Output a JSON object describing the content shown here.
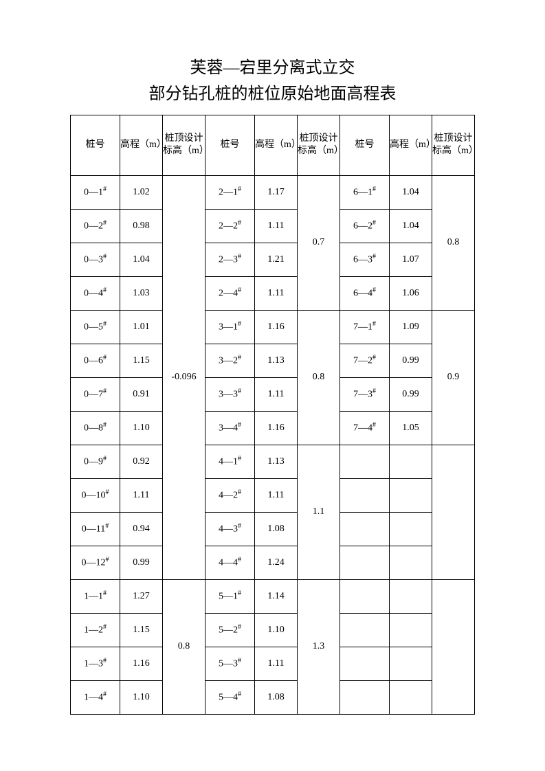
{
  "title_line1": "芙蓉—宕里分离式立交",
  "title_line2": "部分钻孔桩的桩位原始地面高程表",
  "headers": {
    "pile": "桩号",
    "elev": "高程（m）",
    "design": "桩顶设计标高（m）"
  },
  "col1": {
    "design1": "-0.096",
    "design2": "0.8",
    "rows": [
      {
        "p": "0—1",
        "e": "1.02"
      },
      {
        "p": "0—2",
        "e": "0.98"
      },
      {
        "p": "0—3",
        "e": "1.04"
      },
      {
        "p": "0—4",
        "e": "1.03"
      },
      {
        "p": "0—5",
        "e": "1.01"
      },
      {
        "p": "0—6",
        "e": "1.15"
      },
      {
        "p": "0—7",
        "e": "0.91"
      },
      {
        "p": "0—8",
        "e": "1.10"
      },
      {
        "p": "0—9",
        "e": "0.92"
      },
      {
        "p": "0—10",
        "e": "1.11"
      },
      {
        "p": "0—11",
        "e": "0.94"
      },
      {
        "p": "0—12",
        "e": "0.99"
      },
      {
        "p": "1—1",
        "e": "1.27"
      },
      {
        "p": "1—2",
        "e": "1.15"
      },
      {
        "p": "1—3",
        "e": "1.16"
      },
      {
        "p": "1—4",
        "e": "1.10"
      }
    ]
  },
  "col2": {
    "design": [
      "0.7",
      "0.8",
      "1.1",
      "1.3"
    ],
    "rows": [
      {
        "p": "2—1",
        "e": "1.17"
      },
      {
        "p": "2—2",
        "e": "1.11"
      },
      {
        "p": "2—3",
        "e": "1.21"
      },
      {
        "p": "2—4",
        "e": "1.11"
      },
      {
        "p": "3—1",
        "e": "1.16"
      },
      {
        "p": "3—2",
        "e": "1.13"
      },
      {
        "p": "3—3",
        "e": "1.11"
      },
      {
        "p": "3—4",
        "e": "1.16"
      },
      {
        "p": "4—1",
        "e": "1.13"
      },
      {
        "p": "4—2",
        "e": "1.11"
      },
      {
        "p": "4—3",
        "e": "1.08"
      },
      {
        "p": "4—4",
        "e": "1.24"
      },
      {
        "p": "5—1",
        "e": "1.14"
      },
      {
        "p": "5—2",
        "e": "1.10"
      },
      {
        "p": "5—3",
        "e": "1.11"
      },
      {
        "p": "5—4",
        "e": "1.08"
      }
    ]
  },
  "col3": {
    "design": [
      "0.8",
      "0.9",
      "",
      ""
    ],
    "rows": [
      {
        "p": "6—1",
        "e": "1.04"
      },
      {
        "p": "6—2",
        "e": "1.04"
      },
      {
        "p": "6—3",
        "e": "1.07"
      },
      {
        "p": "6—4",
        "e": "1.06"
      },
      {
        "p": "7—1",
        "e": "1.09"
      },
      {
        "p": "7—2",
        "e": "0.99"
      },
      {
        "p": "7—3",
        "e": "0.99"
      },
      {
        "p": "7—4",
        "e": "1.05"
      },
      {
        "p": "",
        "e": ""
      },
      {
        "p": "",
        "e": ""
      },
      {
        "p": "",
        "e": ""
      },
      {
        "p": "",
        "e": ""
      },
      {
        "p": "",
        "e": ""
      },
      {
        "p": "",
        "e": ""
      },
      {
        "p": "",
        "e": ""
      },
      {
        "p": "",
        "e": ""
      }
    ]
  }
}
